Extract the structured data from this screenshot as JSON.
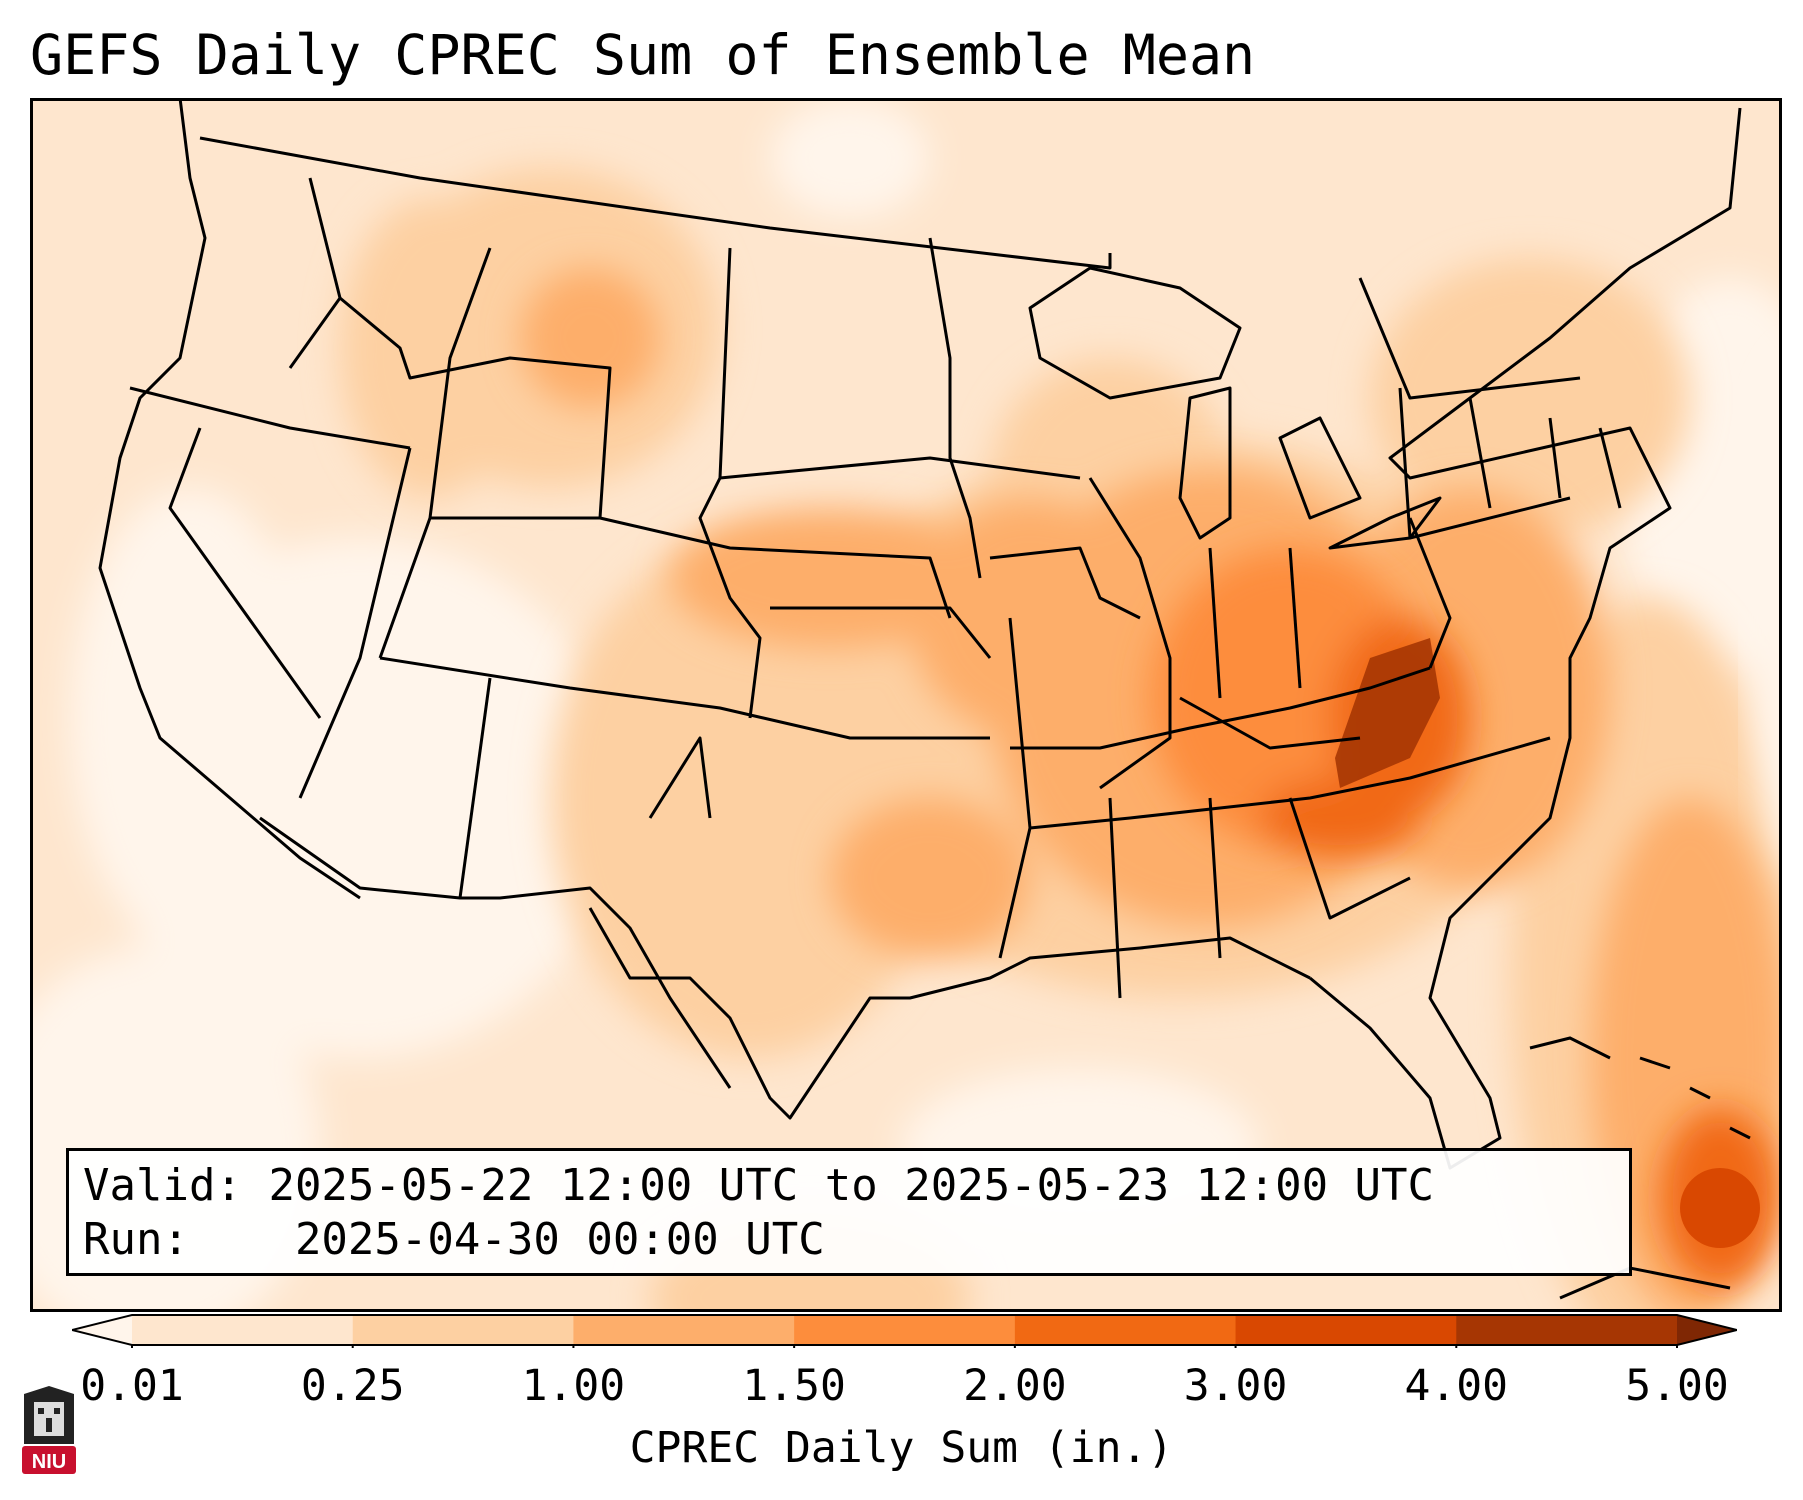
{
  "title": "GEFS Daily CPREC Sum of Ensemble Mean",
  "info": {
    "valid_label": "Valid:",
    "valid_value": "2025-05-22 12:00 UTC to 2025-05-23 12:00 UTC",
    "run_label": "Run:",
    "run_value": "2025-04-30 00:00 UTC"
  },
  "colorbar": {
    "label": "CPREC Daily Sum (in.)",
    "ticks": [
      "0.01",
      "0.25",
      "1.00",
      "1.50",
      "2.00",
      "3.00",
      "4.00",
      "5.00"
    ],
    "colors": [
      "#fff5eb",
      "#fee6ce",
      "#fdd0a2",
      "#fdae6b",
      "#fd8d3c",
      "#f16913",
      "#d94801",
      "#a63603",
      "#7f2704"
    ]
  },
  "logo": {
    "text": "NIU",
    "color": "#c8102e"
  }
}
